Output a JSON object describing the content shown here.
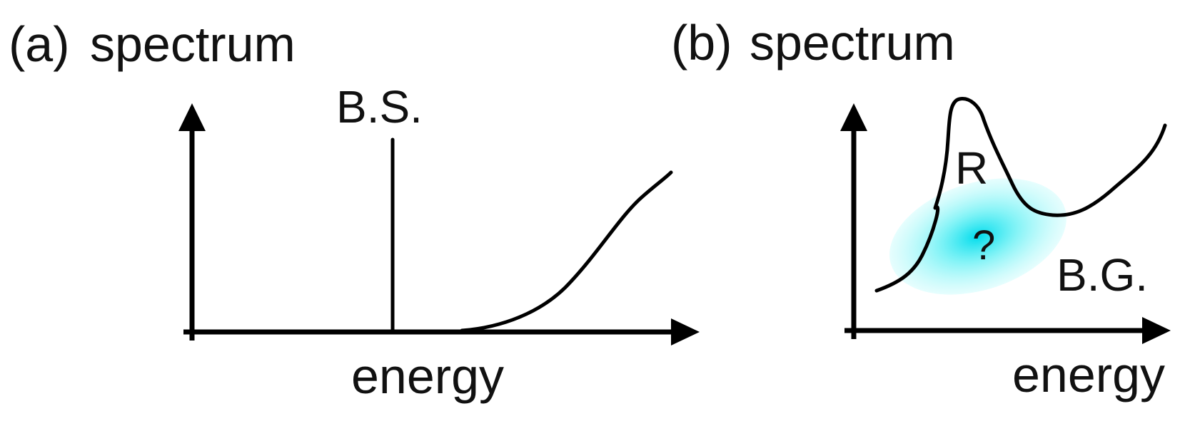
{
  "panel_a": {
    "label": "(a)",
    "y_label": "spectrum",
    "x_label": "energy",
    "line_label": "B.S."
  },
  "panel_b": {
    "label": "(b)",
    "y_label": "spectrum",
    "x_label": "energy",
    "peak_label": "R",
    "region_label": "?",
    "background_label": "B.G."
  },
  "colors": {
    "axis": "#000000",
    "curve": "#000000",
    "glow": "#22e6f0"
  }
}
